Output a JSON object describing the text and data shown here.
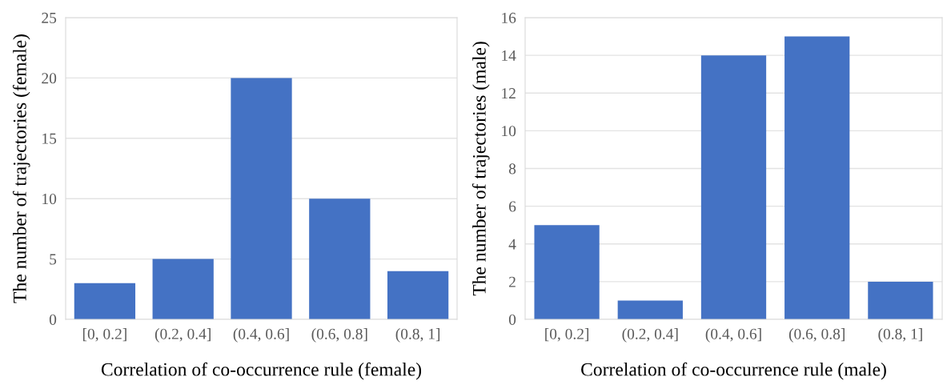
{
  "chart_data": [
    {
      "type": "bar",
      "categories": [
        "[0, 0.2]",
        "(0.2, 0.4]",
        "(0.4, 0.6]",
        "(0.6, 0.8]",
        "(0.8, 1]"
      ],
      "values": [
        3,
        5,
        20,
        10,
        4
      ],
      "color": "#4472c4",
      "xlabel": "Correlation of co-occurrence rule (female)",
      "ylabel": "The number of trajectories (female)",
      "ylim": [
        0,
        25
      ],
      "yticks": [
        0,
        5,
        10,
        15,
        20,
        25
      ],
      "grid": "y"
    },
    {
      "type": "bar",
      "categories": [
        "[0, 0.2]",
        "(0.2, 0.4]",
        "(0.4, 0.6]",
        "(0.6, 0.8]",
        "(0.8, 1]"
      ],
      "values": [
        5,
        1,
        14,
        15,
        2
      ],
      "color": "#4472c4",
      "xlabel": "Correlation of co-occurrence rule (male)",
      "ylabel": "The number of trajectories (male)",
      "ylim": [
        0,
        16
      ],
      "yticks": [
        0,
        2,
        4,
        6,
        8,
        10,
        12,
        14,
        16
      ],
      "grid": "y"
    }
  ]
}
